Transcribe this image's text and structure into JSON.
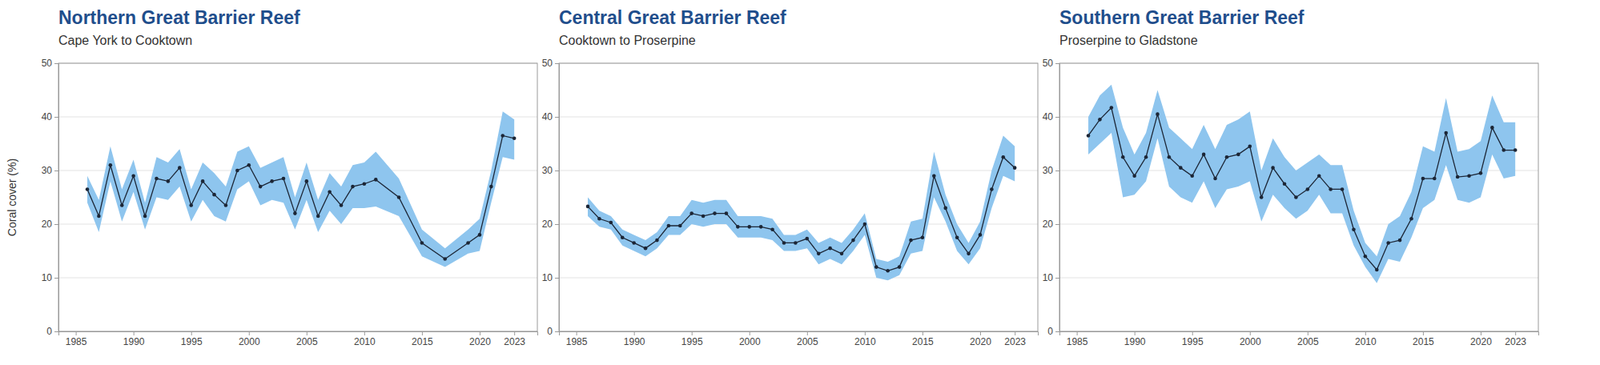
{
  "chart_data": [
    {
      "type": "line",
      "title": "Northern Great Barrier Reef",
      "subtitle": "Cape York to Cooktown",
      "y_label": "Coral cover (%)",
      "x": [
        1986,
        1987,
        1988,
        1989,
        1990,
        1991,
        1992,
        1993,
        1994,
        1995,
        1996,
        1997,
        1998,
        1999,
        2000,
        2001,
        2002,
        2003,
        2004,
        2005,
        2006,
        2007,
        2008,
        2009,
        2010,
        2011,
        2013,
        2015,
        2017,
        2019,
        2020,
        2021,
        2022,
        2023
      ],
      "values": [
        26.5,
        21.5,
        31,
        23.5,
        29,
        21.5,
        28.5,
        28,
        30.5,
        23.5,
        28,
        25.5,
        23.5,
        30,
        31,
        27,
        28,
        28.5,
        22,
        28,
        21.5,
        26,
        23.5,
        27,
        27.5,
        28.3,
        25,
        16.5,
        13.5,
        16.5,
        18,
        27,
        36.5,
        36
      ],
      "lower": [
        24,
        18.5,
        28,
        20.5,
        26,
        19,
        25,
        24.5,
        27,
        20.5,
        24.5,
        21.5,
        20.5,
        26.5,
        28,
        23.5,
        24.5,
        24,
        19,
        24.5,
        18.5,
        22.5,
        20,
        23,
        23,
        23.3,
        21.5,
        14,
        12,
        14.5,
        15,
        24,
        32.5,
        32
      ],
      "upper": [
        29,
        24.5,
        34.5,
        26.5,
        32,
        24,
        32.5,
        31.5,
        34,
        26.5,
        31.5,
        29.5,
        27,
        33.5,
        34.5,
        30.5,
        31.5,
        32.5,
        25,
        31.5,
        24.5,
        29.5,
        27,
        31,
        31.5,
        33.5,
        28.5,
        19,
        15.5,
        19,
        21,
        30,
        41,
        39.5
      ],
      "color": "#1c2636",
      "marker": "circle",
      "xlim": [
        1983.5,
        2025
      ],
      "xticks": [
        1985,
        1990,
        1995,
        2000,
        2005,
        2010,
        2015,
        2020,
        2023
      ],
      "ylim": [
        0,
        50
      ],
      "yticks": [
        0,
        10,
        20,
        30,
        40,
        50
      ],
      "grid": true
    },
    {
      "type": "line",
      "title": "Central Great Barrier Reef",
      "subtitle": "Cooktown to Proserpine",
      "x": [
        1986,
        1987,
        1988,
        1989,
        1990,
        1991,
        1992,
        1993,
        1994,
        1995,
        1996,
        1997,
        1998,
        1999,
        2000,
        2001,
        2002,
        2003,
        2004,
        2005,
        2006,
        2007,
        2008,
        2009,
        2010,
        2011,
        2012,
        2013,
        2014,
        2015,
        2016,
        2017,
        2018,
        2019,
        2020,
        2021,
        2022,
        2023
      ],
      "values": [
        23.3,
        21,
        20.3,
        17.5,
        16.5,
        15.5,
        17,
        19.7,
        19.7,
        22,
        21.5,
        22,
        22,
        19.5,
        19.5,
        19.5,
        19,
        16.5,
        16.5,
        17.3,
        14.5,
        15.5,
        14.5,
        17,
        20,
        12,
        11.3,
        12,
        17,
        17.5,
        29,
        23,
        17.5,
        14.5,
        18,
        26.5,
        32.5,
        30.5
      ],
      "lower": [
        21.5,
        19.5,
        19,
        16,
        15,
        14,
        15.5,
        18,
        18,
        20,
        19.5,
        20,
        20,
        17.5,
        17.5,
        17.5,
        17,
        15,
        15,
        15.5,
        12.5,
        13.5,
        12.5,
        15,
        18,
        10,
        9.5,
        10.5,
        14.5,
        15,
        25,
        20.5,
        15,
        12.5,
        15.5,
        23,
        29,
        28
      ],
      "upper": [
        25,
        22.5,
        21.5,
        19,
        18,
        17,
        18.5,
        21.5,
        21.5,
        24.5,
        24,
        24.5,
        24.5,
        21.5,
        21.5,
        21.5,
        21,
        18,
        18,
        19,
        16.5,
        17.5,
        16.5,
        19,
        22,
        13.5,
        13,
        14,
        20.5,
        21,
        33.5,
        25.5,
        20,
        16.5,
        20.5,
        30,
        36.5,
        34.5
      ],
      "color": "#1c2636",
      "marker": "circle",
      "xlim": [
        1983.5,
        2025
      ],
      "xticks": [
        1985,
        1990,
        1995,
        2000,
        2005,
        2010,
        2015,
        2020,
        2023
      ],
      "ylim": [
        0,
        50
      ],
      "yticks": [
        0,
        10,
        20,
        30,
        40,
        50
      ],
      "grid": true
    },
    {
      "type": "line",
      "title": "Southern Great Barrier Reef",
      "subtitle": "Proserpine to Gladstone",
      "x": [
        1986,
        1987,
        1988,
        1989,
        1990,
        1991,
        1992,
        1993,
        1994,
        1995,
        1996,
        1997,
        1998,
        1999,
        2000,
        2001,
        2002,
        2003,
        2004,
        2005,
        2006,
        2007,
        2008,
        2009,
        2010,
        2011,
        2012,
        2013,
        2014,
        2015,
        2016,
        2017,
        2018,
        2019,
        2020,
        2021,
        2022,
        2023
      ],
      "values": [
        36.5,
        39.5,
        41.7,
        32.5,
        29,
        32.5,
        40.5,
        32.5,
        30.5,
        29,
        33,
        28.5,
        32.5,
        33,
        34.5,
        25,
        30.5,
        27.5,
        25,
        26.5,
        29,
        26.5,
        26.5,
        19,
        14,
        11.5,
        16.5,
        17,
        21,
        28.5,
        28.5,
        37,
        28.8,
        29,
        29.5,
        38,
        33.8,
        33.8
      ],
      "lower": [
        33,
        35,
        37,
        25,
        25.5,
        28,
        36,
        27,
        25,
        24,
        28,
        23,
        26.5,
        27,
        28,
        20.5,
        25.5,
        23,
        21,
        22.5,
        25.5,
        22,
        22,
        16,
        12,
        9,
        13.5,
        13,
        17.5,
        23,
        24.5,
        31,
        24.5,
        24,
        25,
        33,
        28.5,
        29
      ],
      "upper": [
        40,
        44,
        46,
        38,
        33,
        37,
        45,
        38,
        36,
        34,
        38.5,
        34,
        38.5,
        39.5,
        41,
        30,
        36,
        32.5,
        30,
        31.5,
        33,
        31,
        31,
        22.5,
        16.5,
        14,
        20,
        21.5,
        26,
        34.5,
        33.5,
        43.5,
        33.5,
        34,
        35.5,
        44,
        39,
        39
      ],
      "color": "#1c2636",
      "marker": "circle",
      "xlim": [
        1983.5,
        2025
      ],
      "xticks": [
        1985,
        1990,
        1995,
        2000,
        2005,
        2010,
        2015,
        2020,
        2023
      ],
      "ylim": [
        0,
        50
      ],
      "yticks": [
        0,
        10,
        20,
        30,
        40,
        50
      ],
      "grid": true
    }
  ]
}
